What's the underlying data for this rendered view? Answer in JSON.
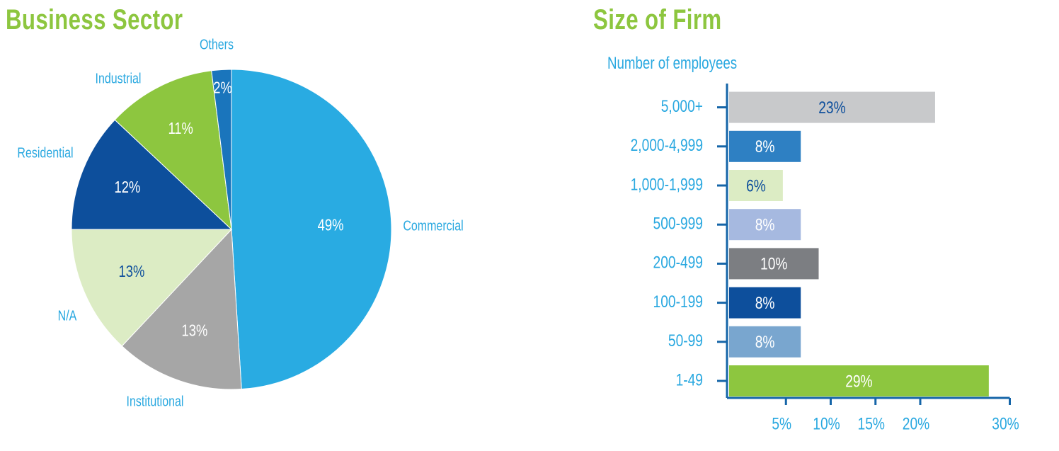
{
  "colors": {
    "title": "#8dc63f",
    "label": "#29a8e0",
    "axis": "#1565a8"
  },
  "chart_data": [
    {
      "type": "pie",
      "title": "Business Sector",
      "slices": [
        {
          "label": "Commercial",
          "value": 49,
          "value_label": "49%",
          "color": "#29abe2",
          "text_color": "#ffffff"
        },
        {
          "label": "Institutional",
          "value": 13,
          "value_label": "13%",
          "color": "#a6a6a6",
          "text_color": "#ffffff"
        },
        {
          "label": "N/A",
          "value": 13,
          "value_label": "13%",
          "color": "#dcecc4",
          "text_color": "#0e4f9c"
        },
        {
          "label": "Residential",
          "value": 12,
          "value_label": "12%",
          "color": "#0d4f9c",
          "text_color": "#ffffff"
        },
        {
          "label": "Industrial",
          "value": 11,
          "value_label": "11%",
          "color": "#8dc63f",
          "text_color": "#ffffff"
        },
        {
          "label": "Others",
          "value": 2,
          "value_label": "2%",
          "color": "#1a75bc",
          "text_color": "#ffffff"
        }
      ]
    },
    {
      "type": "bar",
      "orientation": "horizontal",
      "title": "Size of Firm",
      "ylabel": "Number of employees",
      "categories": [
        "5,000+",
        "2,000-4,999",
        "1,000-1,999",
        "500-999",
        "200-499",
        "100-199",
        "50-99",
        "1-49"
      ],
      "values": [
        23,
        8,
        6,
        8,
        10,
        8,
        8,
        29
      ],
      "value_labels": [
        "23%",
        "8%",
        "6%",
        "8%",
        "10%",
        "8%",
        "8%",
        "29%"
      ],
      "bar_colors": [
        "#c8c9cb",
        "#2e80c3",
        "#dcecc4",
        "#a6b9e0",
        "#7c7e82",
        "#0d4f9c",
        "#79a6cf",
        "#8dc63f"
      ],
      "label_colors": [
        "#0e4f9c",
        "#ffffff",
        "#0e4f9c",
        "#ffffff",
        "#ffffff",
        "#ffffff",
        "#ffffff",
        "#ffffff"
      ],
      "xticks": [
        5,
        10,
        15,
        20,
        30
      ],
      "xtick_labels": [
        "5%",
        "10%",
        "15%",
        "20%",
        "30%"
      ],
      "xlim": [
        0,
        30
      ]
    }
  ]
}
